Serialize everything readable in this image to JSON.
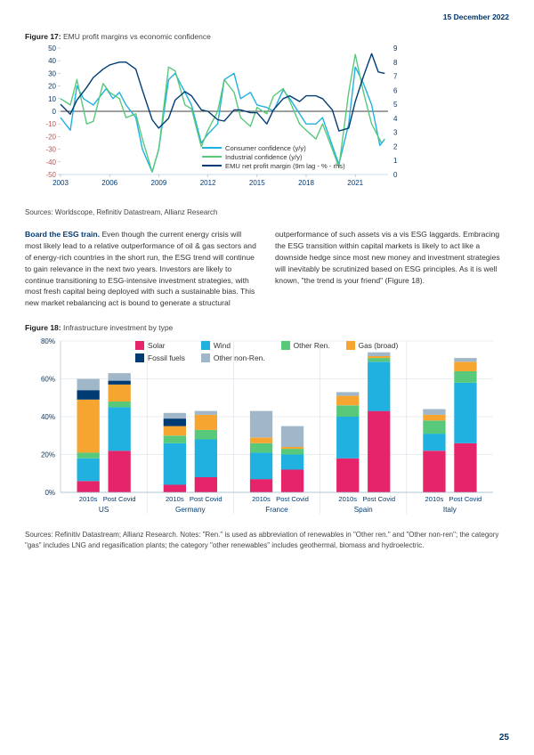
{
  "header": {
    "date": "15 December 2022",
    "page_number": "25"
  },
  "figure17": {
    "title_prefix": "Figure 17: ",
    "title": "EMU profit margins vs economic confidence",
    "sources": "Sources: Worldscope, Refinitiv Datastream, Allianz Research",
    "type": "line",
    "left_axis": {
      "min": -50,
      "max": 50,
      "step": 10,
      "color": "#003b73"
    },
    "right_axis": {
      "min": 0,
      "max": 9,
      "step": 1,
      "color": "#003b73"
    },
    "x_axis": {
      "min": 2003,
      "max": 2023,
      "ticks": [
        "2003",
        "2006",
        "2009",
        "2012",
        "2015",
        "2018",
        "2021"
      ]
    },
    "series": [
      {
        "name": "Consumer confidence (y/y)",
        "axis": "left",
        "color": "#21b1e0",
        "points": [
          [
            2003,
            -5
          ],
          [
            2003.6,
            -15
          ],
          [
            2004,
            20
          ],
          [
            2004.4,
            10
          ],
          [
            2005,
            5
          ],
          [
            2005.8,
            18
          ],
          [
            2006.2,
            10
          ],
          [
            2006.6,
            15
          ],
          [
            2007,
            5
          ],
          [
            2007.6,
            -5
          ],
          [
            2008,
            -30
          ],
          [
            2008.6,
            -48
          ],
          [
            2009,
            -30
          ],
          [
            2009.6,
            25
          ],
          [
            2010,
            30
          ],
          [
            2010.6,
            15
          ],
          [
            2011,
            5
          ],
          [
            2011.6,
            -25
          ],
          [
            2012,
            -18
          ],
          [
            2012.6,
            -10
          ],
          [
            2013,
            25
          ],
          [
            2013.6,
            30
          ],
          [
            2014,
            10
          ],
          [
            2014.6,
            15
          ],
          [
            2015,
            5
          ],
          [
            2015.6,
            3
          ],
          [
            2016,
            0
          ],
          [
            2016.6,
            17
          ],
          [
            2017,
            10
          ],
          [
            2017.6,
            -2
          ],
          [
            2018,
            -10
          ],
          [
            2018.6,
            -10
          ],
          [
            2019,
            -5
          ],
          [
            2019.4,
            -20
          ],
          [
            2020,
            -42
          ],
          [
            2020.6,
            -10
          ],
          [
            2021,
            35
          ],
          [
            2021.5,
            22
          ],
          [
            2022,
            5
          ],
          [
            2022.5,
            -27
          ],
          [
            2022.8,
            -22
          ]
        ]
      },
      {
        "name": "Industrial confidence (y/y)",
        "axis": "left",
        "color": "#58c97b",
        "points": [
          [
            2003,
            10
          ],
          [
            2003.6,
            5
          ],
          [
            2004,
            25
          ],
          [
            2004.6,
            -10
          ],
          [
            2005,
            -8
          ],
          [
            2005.6,
            22
          ],
          [
            2006,
            15
          ],
          [
            2006.6,
            10
          ],
          [
            2007,
            -5
          ],
          [
            2007.6,
            -2
          ],
          [
            2008,
            -22
          ],
          [
            2008.6,
            -48
          ],
          [
            2009,
            -30
          ],
          [
            2009.6,
            35
          ],
          [
            2010,
            32
          ],
          [
            2010.6,
            5
          ],
          [
            2011,
            2
          ],
          [
            2011.6,
            -28
          ],
          [
            2012,
            -15
          ],
          [
            2012.6,
            0
          ],
          [
            2013,
            25
          ],
          [
            2013.6,
            15
          ],
          [
            2014,
            -5
          ],
          [
            2014.6,
            -12
          ],
          [
            2015,
            3
          ],
          [
            2015.6,
            -2
          ],
          [
            2016,
            12
          ],
          [
            2016.6,
            18
          ],
          [
            2017,
            8
          ],
          [
            2017.6,
            -10
          ],
          [
            2018,
            -15
          ],
          [
            2018.6,
            -22
          ],
          [
            2019,
            -10
          ],
          [
            2019.6,
            -30
          ],
          [
            2020,
            -44
          ],
          [
            2020.6,
            15
          ],
          [
            2021,
            45
          ],
          [
            2021.5,
            15
          ],
          [
            2022,
            -10
          ],
          [
            2022.6,
            -25
          ]
        ]
      },
      {
        "name": "EMU net profit margin (9m lag - % - rhs)",
        "axis": "right",
        "color": "#003b73",
        "points": [
          [
            2003,
            5.0
          ],
          [
            2003.6,
            4.3
          ],
          [
            2004,
            5.3
          ],
          [
            2004.6,
            6.2
          ],
          [
            2005,
            6.9
          ],
          [
            2005.6,
            7.5
          ],
          [
            2006,
            7.8
          ],
          [
            2006.6,
            8.0
          ],
          [
            2007,
            8.0
          ],
          [
            2007.6,
            7.5
          ],
          [
            2008,
            6.0
          ],
          [
            2008.6,
            3.9
          ],
          [
            2009,
            3.3
          ],
          [
            2009.6,
            4.0
          ],
          [
            2010,
            5.3
          ],
          [
            2010.6,
            5.9
          ],
          [
            2011,
            5.6
          ],
          [
            2011.6,
            4.6
          ],
          [
            2012,
            4.5
          ],
          [
            2012.6,
            3.9
          ],
          [
            2013,
            3.8
          ],
          [
            2013.6,
            4.6
          ],
          [
            2014,
            4.6
          ],
          [
            2014.6,
            4.4
          ],
          [
            2015,
            4.4
          ],
          [
            2015.6,
            3.6
          ],
          [
            2016,
            4.6
          ],
          [
            2016.6,
            5.4
          ],
          [
            2017,
            5.6
          ],
          [
            2017.6,
            5.2
          ],
          [
            2018,
            5.6
          ],
          [
            2018.6,
            5.6
          ],
          [
            2019,
            5.4
          ],
          [
            2019.6,
            4.6
          ],
          [
            2020,
            3.1
          ],
          [
            2020.6,
            3.3
          ],
          [
            2021,
            5.2
          ],
          [
            2021.5,
            7.0
          ],
          [
            2022,
            8.6
          ],
          [
            2022.4,
            7.3
          ],
          [
            2022.8,
            7.2
          ]
        ]
      }
    ]
  },
  "body_text": {
    "left": [
      "Board the ESG train. ",
      "Even though the current energy crisis will most likely lead to a relative outperformance of oil & gas sectors and of energy-rich countries in the short run, the ESG trend will continue to gain relevance in the next two years. Investors are likely to continue transitioning to ESG-intensive investment strategies, with most fresh capital being deployed with such a sustainable bias. This new market rebalancing act is bound to generate a structural"
    ],
    "right": "outperformance of such assets vis a vis ESG laggards. Embracing the ESG transition within capital markets is likely to act like a downside hedge since most new money and investment strategies will inevitably be scrutinized based on ESG principles. As it is well known, \"the trend is your friend\" (Figure 18)."
  },
  "figure18": {
    "title_prefix": "Figure 18: ",
    "title": "Infrastructure investment by type",
    "type": "stacked-bar",
    "y_axis": {
      "min": 0,
      "max": 80,
      "step": 20,
      "format": "%"
    },
    "legend_order": [
      "solar",
      "wind",
      "other_ren",
      "gas",
      "fossil",
      "other_non"
    ],
    "colors": {
      "solar": "#e6246a",
      "wind": "#21b1e0",
      "other_ren": "#58c97b",
      "gas": "#f7a531",
      "fossil": "#003b73",
      "other_non": "#9fb7c9"
    },
    "legend_labels": {
      "solar": "Solar",
      "wind": "Wind",
      "other_ren": "Other Ren.",
      "gas": "Gas (broad)",
      "fossil": "Fossil fuels",
      "other_non": "Other non-Ren."
    },
    "groups": [
      "US",
      "Germany",
      "France",
      "Spain",
      "Italy"
    ],
    "sub_labels": [
      "2010s",
      "Post Covid"
    ],
    "series_stack_order": [
      "solar",
      "wind",
      "other_ren",
      "gas",
      "fossil",
      "other_non"
    ],
    "data": {
      "US": {
        "2010s": {
          "solar": 6,
          "wind": 12,
          "other_ren": 3,
          "gas": 28,
          "fossil": 5,
          "other_non": 6
        },
        "Post Covid": {
          "solar": 22,
          "wind": 23,
          "other_ren": 3,
          "gas": 9,
          "fossil": 2,
          "other_non": 4
        }
      },
      "Germany": {
        "2010s": {
          "solar": 4,
          "wind": 22,
          "other_ren": 4,
          "gas": 5,
          "fossil": 4,
          "other_non": 3
        },
        "Post Covid": {
          "solar": 8,
          "wind": 20,
          "other_ren": 5,
          "gas": 8,
          "fossil": 0,
          "other_non": 2
        }
      },
      "France": {
        "2010s": {
          "solar": 7,
          "wind": 14,
          "other_ren": 5,
          "gas": 3,
          "fossil": 0,
          "other_non": 14
        },
        "Post Covid": {
          "solar": 12,
          "wind": 8,
          "other_ren": 3,
          "gas": 1,
          "fossil": 0,
          "other_non": 11
        }
      },
      "Spain": {
        "2010s": {
          "solar": 18,
          "wind": 22,
          "other_ren": 6,
          "gas": 5,
          "fossil": 0,
          "other_non": 2
        },
        "Post Covid": {
          "solar": 43,
          "wind": 26,
          "other_ren": 2,
          "gas": 1,
          "fossil": 0,
          "other_non": 2
        }
      },
      "Italy": {
        "2010s": {
          "solar": 22,
          "wind": 9,
          "other_ren": 7,
          "gas": 3,
          "fossil": 0,
          "other_non": 3
        },
        "Post Covid": {
          "solar": 26,
          "wind": 32,
          "other_ren": 6,
          "gas": 5,
          "fossil": 0,
          "other_non": 2
        }
      }
    },
    "sources": "Sources: Refinitiv Datastream; Allianz Research. Notes: \"Ren.\" is used as abbreviation of renewables in \"Other ren.\" and \"Other non-ren\"; the category \"gas\" includes LNG and regasification plants; the category \"other renewables\" includes geothermal, biomass and hydroelectric."
  },
  "style": {
    "axis_text_color": "#003b73",
    "axis_line_color": "#9fb7c9",
    "grid_color": "#d6dee6",
    "group_sep_color": "#d6dee6",
    "tick_fontsize": 8
  }
}
